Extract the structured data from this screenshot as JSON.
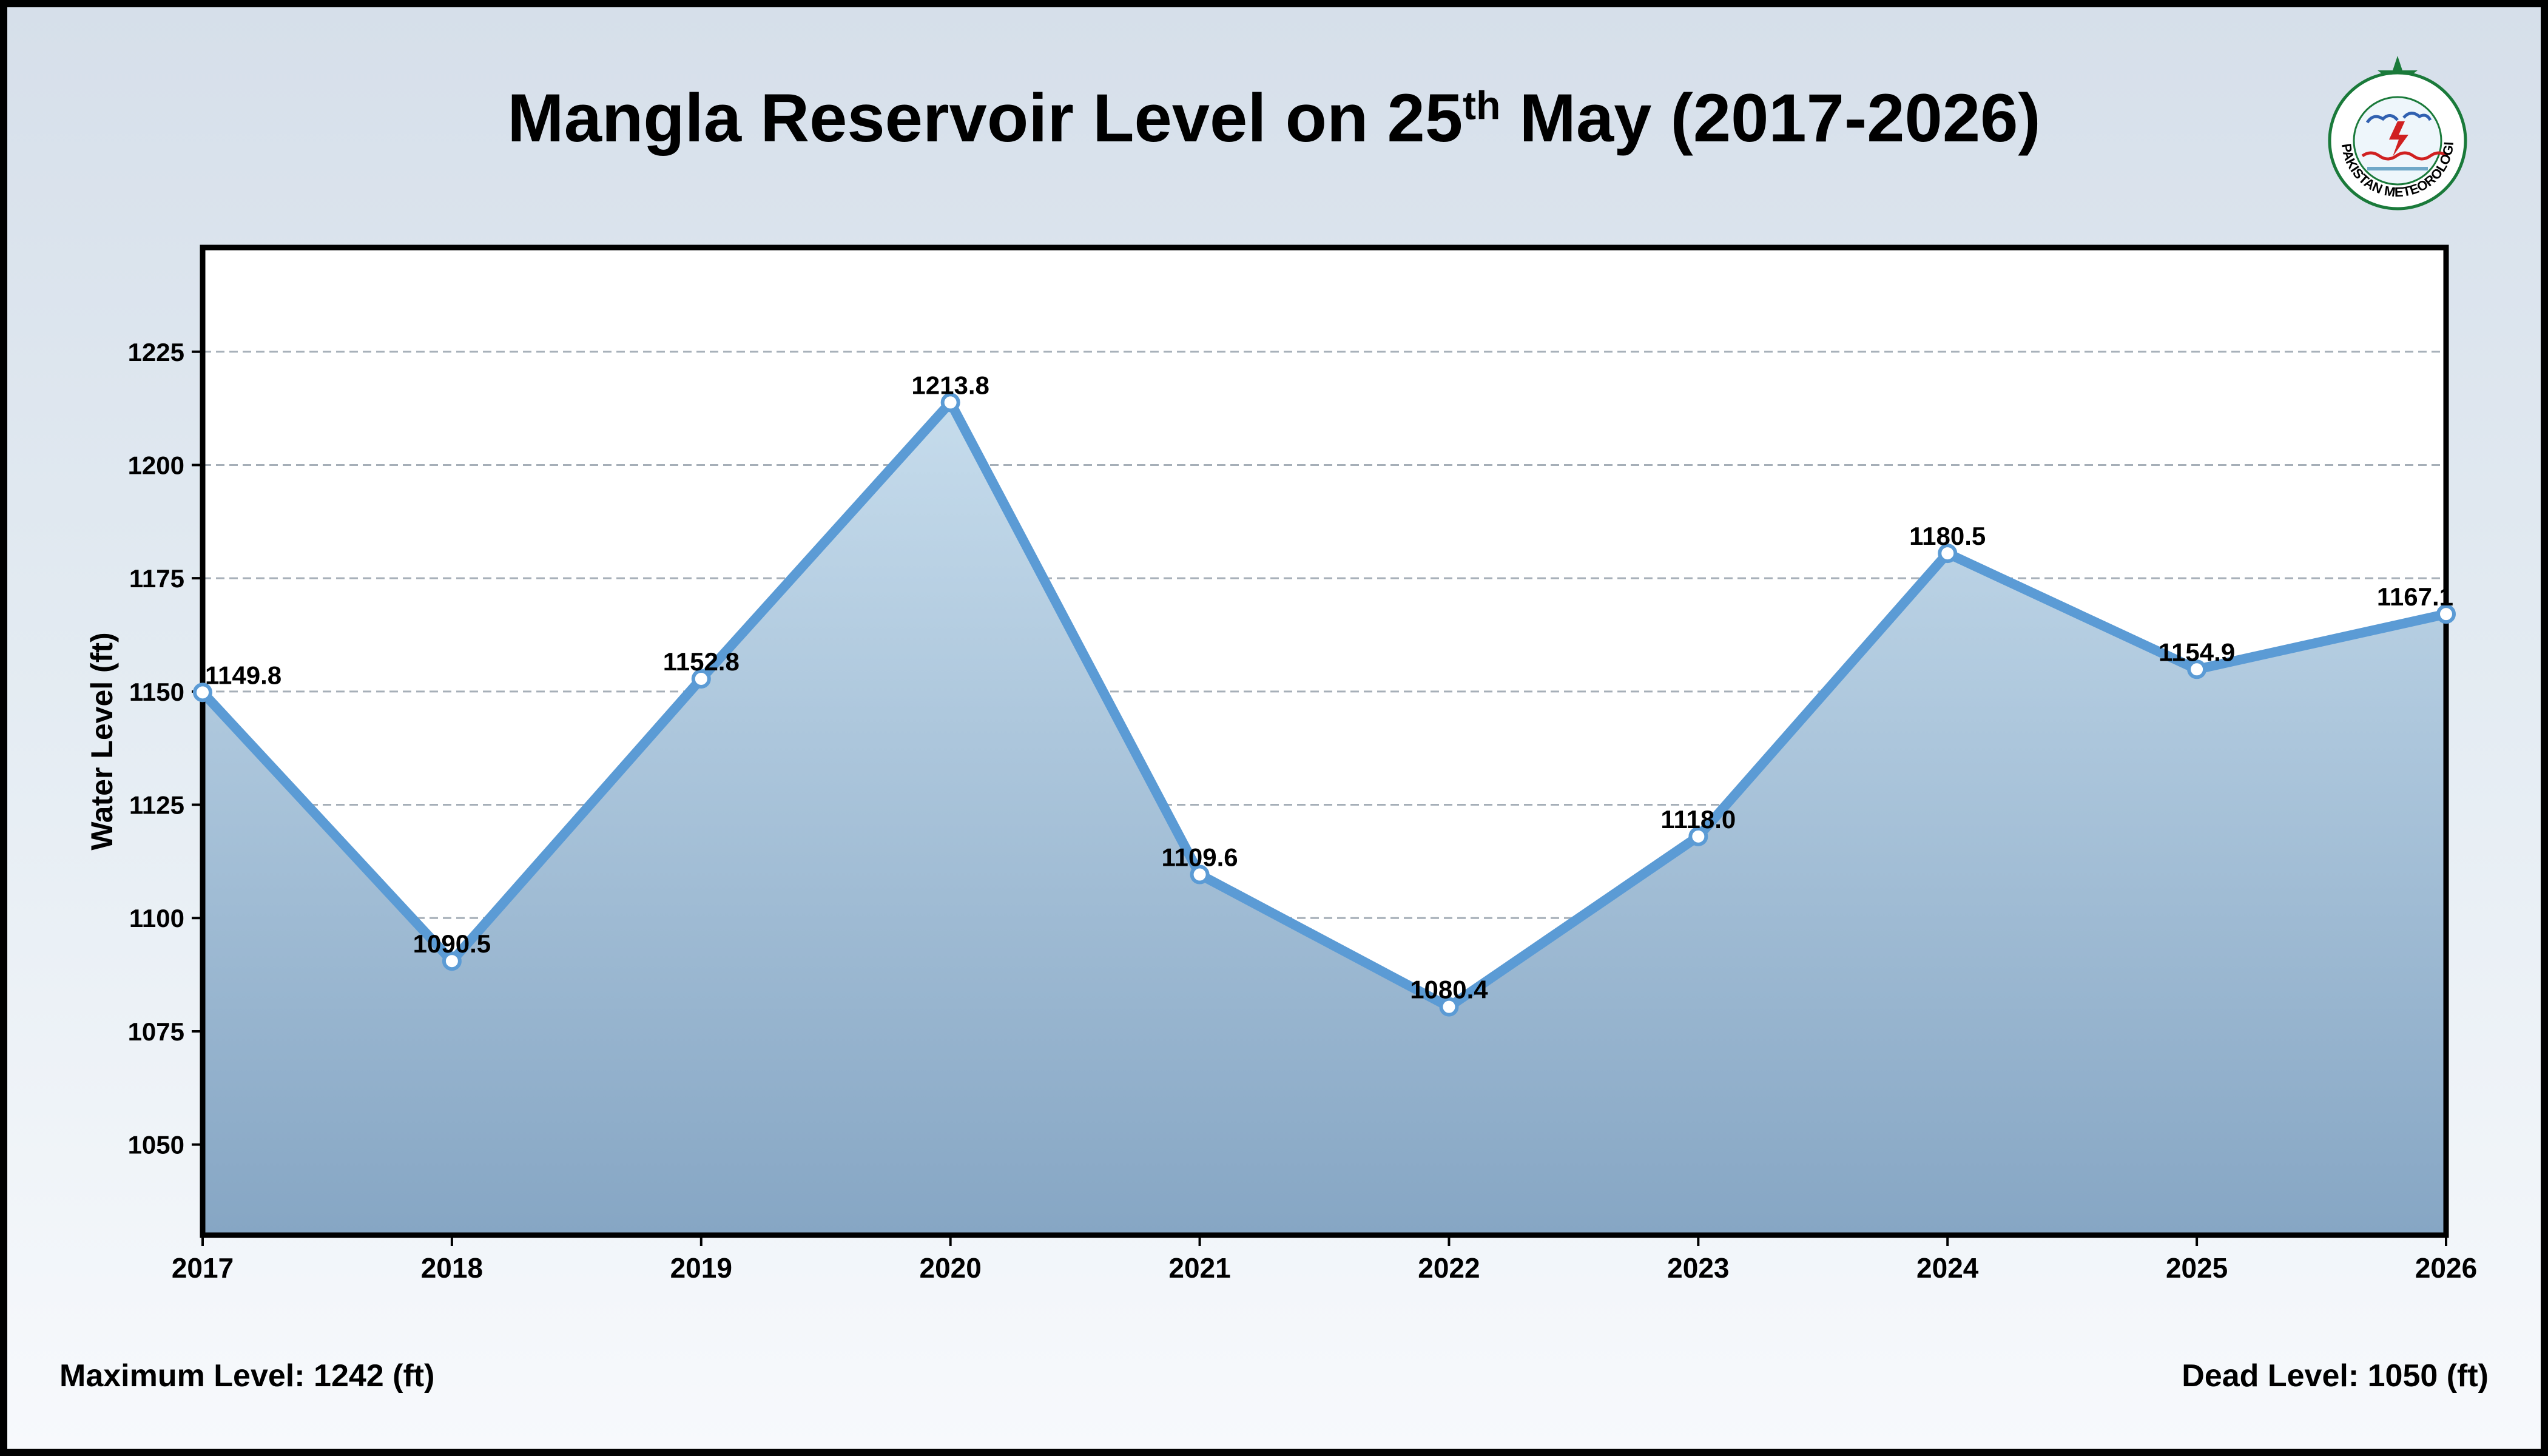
{
  "title": {
    "prefix": "Mangla Reservoir Level on 25",
    "superscript": "th",
    "suffix": " May (2017-2026)"
  },
  "logo": {
    "text": "PAKISTAN METEOROLOGICAL DEPARTMENT",
    "colors": {
      "star": "#1a7a3a",
      "ring": "#1a7a3a",
      "accent": "#d02020"
    }
  },
  "footer": {
    "max_level": "Maximum Level: 1242 (ft)",
    "dead_level": "Dead Level: 1050 (ft)"
  },
  "chart_data": {
    "type": "area",
    "title": "Mangla Reservoir Level on 25th May (2017-2026)",
    "xlabel": "",
    "ylabel": "Water Level (ft)",
    "categories": [
      "2017",
      "2018",
      "2019",
      "2020",
      "2021",
      "2022",
      "2023",
      "2024",
      "2025",
      "2026"
    ],
    "values": [
      1149.8,
      1090.5,
      1152.8,
      1213.8,
      1109.6,
      1080.4,
      1118.0,
      1180.5,
      1154.9,
      1167.1
    ],
    "data_labels": [
      "1149.8",
      "1090.5",
      "1152.8",
      "1213.8",
      "1109.6",
      "1080.4",
      "1118.0",
      "1180.5",
      "1154.9",
      "1167.1"
    ],
    "ylim": [
      1030,
      1248
    ],
    "yticks": [
      1050,
      1075,
      1100,
      1125,
      1150,
      1175,
      1200,
      1225
    ],
    "grid": true,
    "colors": {
      "line": "#5b9bd5",
      "fill_top": "#c6dcec",
      "fill_bottom": "#86a6c4",
      "marker_fill": "#ffffff"
    }
  }
}
